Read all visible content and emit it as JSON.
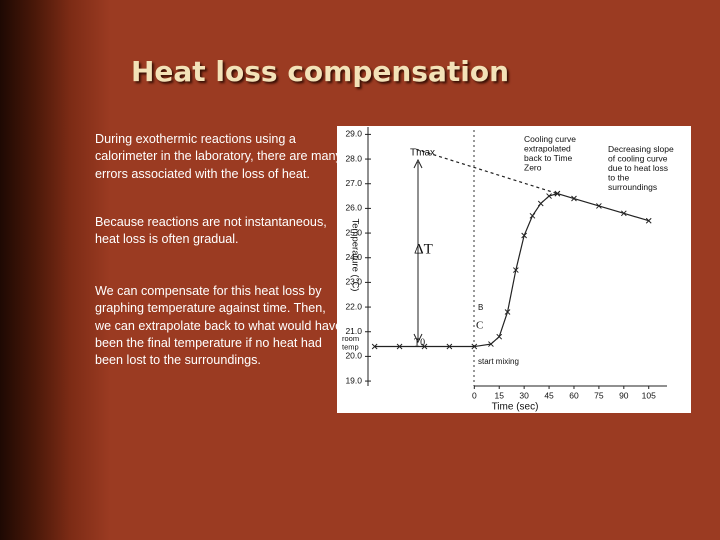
{
  "slide": {
    "title": "Heat loss compensation",
    "paragraphs": [
      "During exothermic reactions using a calorimeter in the laboratory, there are many errors associated with the loss of heat.",
      "Because reactions are not instantaneous, heat loss is often gradual.",
      "We can compensate for this heat loss by graphing temperature against time. Then, we can extrapolate back to what would have been the final temperature if no heat had been lost to the surroundings."
    ]
  },
  "chart_data": {
    "type": "line",
    "xlabel": "Time (sec)",
    "ylabel": "Temperature (°C)",
    "xlim": [
      -64,
      116
    ],
    "ylim": [
      18.8,
      29.3
    ],
    "xticks": [
      0,
      15,
      30,
      45,
      60,
      75,
      90,
      105
    ],
    "yticks": [
      {
        "value": 19,
        "label": "19.0"
      },
      {
        "value": 20,
        "label": "20.0"
      },
      {
        "value": 21,
        "label": "21.0"
      },
      {
        "value": 22,
        "label": "22.0"
      },
      {
        "value": 23,
        "label": "23.0"
      },
      {
        "value": 24,
        "label": "24.0"
      },
      {
        "value": 25,
        "label": "25.0"
      },
      {
        "value": 26,
        "label": "26.0"
      },
      {
        "value": 27,
        "label": "27.0"
      },
      {
        "value": 28,
        "label": "28.0"
      },
      {
        "value": 29,
        "label": "29.0"
      }
    ],
    "grid": false,
    "series": [
      {
        "color": "#222222",
        "dashed": false,
        "x": [
          -60,
          -45,
          -30,
          -15,
          0,
          10,
          15,
          20,
          25,
          30,
          35,
          40,
          45,
          50
        ],
        "values": [
          20.4,
          20.4,
          20.4,
          20.4,
          20.4,
          20.5,
          20.8,
          21.8,
          23.5,
          24.9,
          25.7,
          26.2,
          26.5,
          26.6
        ]
      },
      {
        "color": "#222222",
        "dashed": false,
        "x": [
          50,
          60,
          75,
          90,
          105
        ],
        "values": [
          26.6,
          26.4,
          26.1,
          25.8,
          25.5
        ]
      },
      {
        "color": "#222222",
        "dashed": true,
        "x": [
          -35,
          50
        ],
        "values": [
          28.4,
          26.6
        ]
      }
    ],
    "annotations": [
      "Cooling curve extrapolated back to Time Zero",
      "Decreasing slope of cooling curve due to heat loss to the surroundings",
      "Tmax",
      "ΔT",
      "B",
      "C",
      "T0",
      "room temp",
      "start mixing"
    ]
  }
}
